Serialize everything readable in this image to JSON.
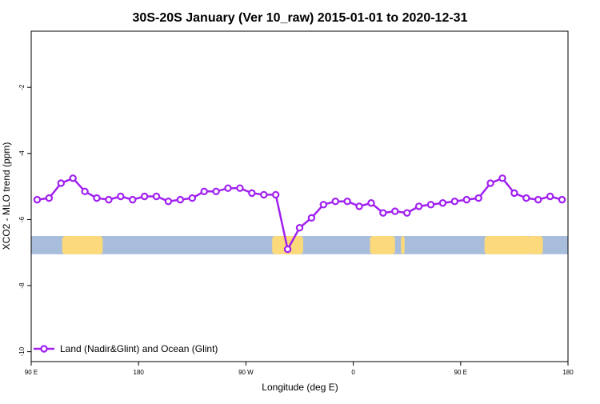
{
  "chart_data": {
    "type": "line",
    "title": "30S-20S January (Ver 10_raw)   2015-01-01 to 2020-12-31",
    "xlabel": "Longitude (deg E)",
    "ylabel": "XCO2 - MLO trend (ppm)",
    "xlim": [
      90,
      540
    ],
    "ylim": [
      -10.3,
      -0.3
    ],
    "x_ticks": [
      {
        "value": 90,
        "label": "90 E"
      },
      {
        "value": 180,
        "label": "180"
      },
      {
        "value": 270,
        "label": "90 W"
      },
      {
        "value": 360,
        "label": "0"
      },
      {
        "value": 450,
        "label": "90 E"
      },
      {
        "value": 540,
        "label": "180"
      }
    ],
    "y_ticks": [
      {
        "value": -2,
        "label": "-2"
      },
      {
        "value": -4,
        "label": "-4"
      },
      {
        "value": -6,
        "label": "-6"
      },
      {
        "value": -8,
        "label": "-8"
      },
      {
        "value": -10,
        "label": "-10"
      }
    ],
    "series": [
      {
        "name": "Land (Nadir&Glint) and Ocean (Glint)",
        "color": "#a020f0",
        "x": [
          95,
          105,
          115,
          125,
          135,
          145,
          155,
          165,
          175,
          185,
          195,
          205,
          215,
          225,
          235,
          245,
          255,
          265,
          275,
          285,
          295,
          305,
          315,
          325,
          335,
          345,
          355,
          365,
          375,
          385,
          395,
          405,
          415,
          425,
          435,
          445,
          455,
          465,
          475,
          485,
          495,
          505,
          515,
          525,
          535
        ],
        "y": [
          -5.4,
          -5.35,
          -4.9,
          -4.75,
          -5.15,
          -5.35,
          -5.4,
          -5.3,
          -5.4,
          -5.3,
          -5.3,
          -5.45,
          -5.4,
          -5.35,
          -5.15,
          -5.15,
          -5.05,
          -5.05,
          -5.2,
          -5.25,
          -5.25,
          -6.9,
          -6.25,
          -5.95,
          -5.55,
          -5.45,
          -5.45,
          -5.6,
          -5.5,
          -5.8,
          -5.75,
          -5.8,
          -5.6,
          -5.55,
          -5.5,
          -5.45,
          -5.4,
          -5.35,
          -4.9,
          -4.75,
          -5.2,
          -5.35,
          -5.4,
          -5.3,
          -5.4
        ]
      }
    ],
    "surface_band": {
      "y_range": [
        -7.05,
        -6.5
      ],
      "ocean_color": "#a8bddb",
      "land_color": "#fcd97a",
      "land_spans": [
        [
          116,
          150
        ],
        [
          144,
          147
        ],
        [
          292,
          314
        ],
        [
          306,
          318
        ],
        [
          374,
          395
        ],
        [
          400,
          403
        ],
        [
          470,
          508
        ],
        [
          506,
          519
        ]
      ]
    },
    "legend_position": "bottom-left",
    "grid": false
  }
}
